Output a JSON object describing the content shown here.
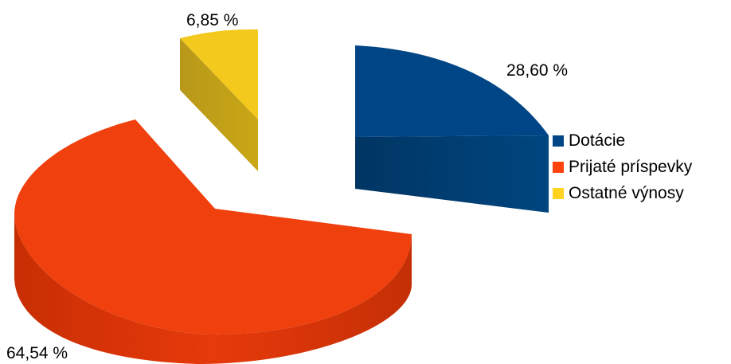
{
  "chart_data": {
    "type": "pie",
    "categories": [
      "Dotácie",
      "Prijaté príspevky",
      "Ostatné výnosy"
    ],
    "values": [
      28.6,
      64.54,
      6.85
    ],
    "data_labels": [
      "28,60 %",
      "64,54 %",
      "6,85 %"
    ],
    "colors": [
      "#004586",
      "#ff420e",
      "#ffd320"
    ],
    "legend": "right",
    "exploded": true,
    "three_d": true
  }
}
